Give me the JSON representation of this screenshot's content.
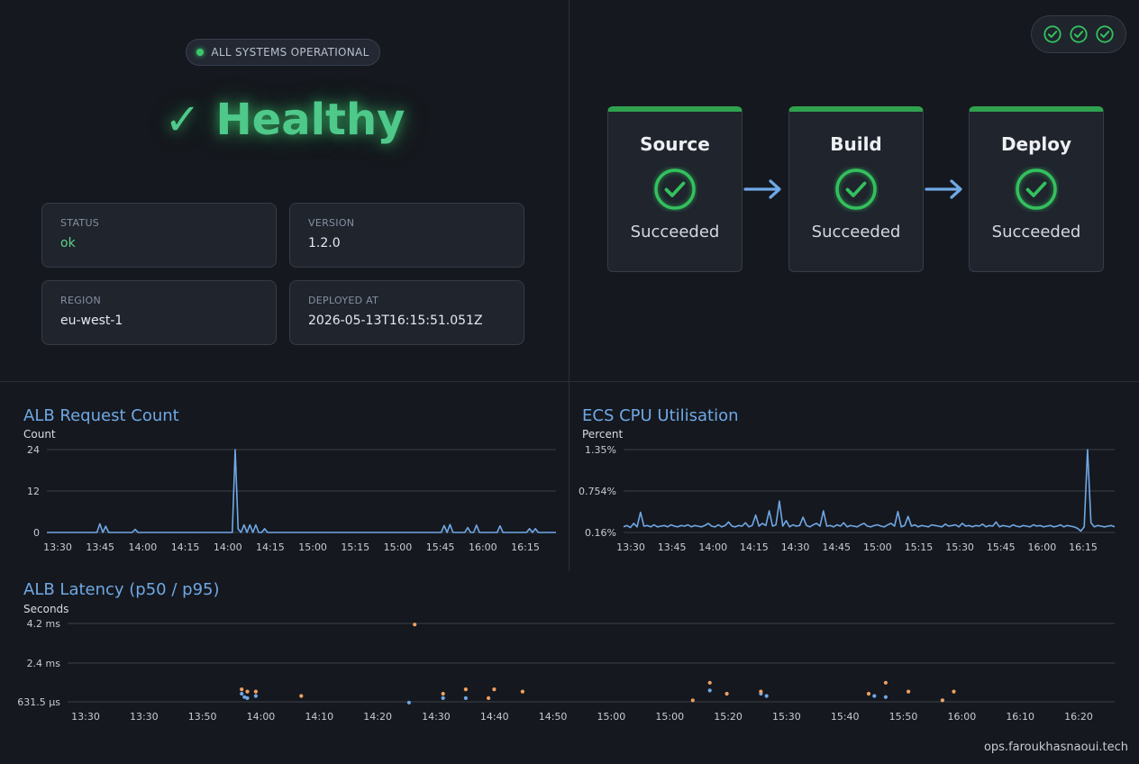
{
  "status": {
    "banner": "ALL SYSTEMS OPERATIONAL",
    "headline": "✓ Healthy",
    "cards": [
      {
        "label": "STATUS",
        "value": "ok"
      },
      {
        "label": "VERSION",
        "value": "1.2.0"
      },
      {
        "label": "REGION",
        "value": "eu-west-1"
      },
      {
        "label": "DEPLOYED AT",
        "value": "2026-05-13T16:15:51.051Z"
      }
    ]
  },
  "pipeline": {
    "stages": [
      {
        "name": "Source",
        "status": "Succeeded"
      },
      {
        "name": "Build",
        "status": "Succeeded"
      },
      {
        "name": "Deploy",
        "status": "Succeeded"
      }
    ],
    "icons": [
      "check-circle-icon",
      "arrow-right-icon"
    ],
    "colors": {
      "success": "#2fa24e",
      "arrow": "#6fa8e6"
    }
  },
  "footer": {
    "domain": "ops.faroukhasnaoui.tech"
  },
  "chart_data": [
    {
      "type": "line",
      "title": "ALB Request Count",
      "ylabel": "Count",
      "ylim": [
        0,
        24
      ],
      "yticks": [
        "24",
        "12",
        "0"
      ],
      "xticks": [
        "13:30",
        "13:45",
        "14:00",
        "14:15",
        "14:00",
        "14:15",
        "15:00",
        "15:15",
        "15:00",
        "15:45",
        "16:00",
        "16:15"
      ],
      "grid": true,
      "color": "#6fa8e6",
      "series": [
        {
          "values": [
            0,
            0,
            0,
            0,
            0,
            0,
            0,
            0,
            0,
            0,
            0,
            0,
            0,
            0,
            0,
            0,
            0,
            0,
            2.5,
            0,
            1.8,
            0,
            0,
            0,
            0,
            0,
            0,
            0,
            0,
            0,
            0.9,
            0,
            0,
            0,
            0,
            0,
            0,
            0,
            0,
            0,
            0,
            0,
            0,
            0,
            0,
            0,
            0,
            0,
            0,
            0,
            0,
            0,
            0,
            0,
            0,
            0,
            0,
            0,
            0,
            0,
            0,
            0,
            0,
            0,
            24,
            1,
            0,
            2.2,
            0,
            2.2,
            0,
            2.2,
            0,
            0,
            1.1,
            0,
            0,
            0,
            0,
            0,
            0,
            0,
            0,
            0,
            0,
            0,
            0,
            0,
            0,
            0,
            0,
            0,
            0,
            0,
            0,
            0,
            0,
            0,
            0,
            0,
            0,
            0,
            0,
            0,
            0,
            0,
            0,
            0,
            0,
            0,
            0,
            0,
            0,
            0,
            0,
            0,
            0,
            0,
            0,
            0,
            0,
            0,
            0,
            0,
            0,
            0,
            0,
            0,
            0,
            0,
            0,
            0,
            0,
            0,
            0,
            2,
            0,
            2.3,
            0,
            0,
            0,
            0,
            0,
            1.4,
            0,
            0,
            2.1,
            0,
            0,
            0,
            0,
            0,
            0,
            0,
            1.9,
            0,
            0,
            0,
            0,
            0,
            0,
            0,
            0,
            0,
            1.1,
            0,
            1.1,
            0,
            0,
            0,
            0,
            0,
            0,
            0
          ]
        }
      ]
    },
    {
      "type": "line",
      "title": "ECS CPU Utilisation",
      "ylabel": "Percent",
      "ylim": [
        0.16,
        1.35
      ],
      "yticks": [
        "1.35%",
        "0.754%",
        "0.16%"
      ],
      "xticks": [
        "13:30",
        "13:45",
        "14:00",
        "14:15",
        "14:30",
        "14:45",
        "15:00",
        "15:15",
        "15:30",
        "15:45",
        "16:00",
        "16:15"
      ],
      "grid": true,
      "color": "#6fa8e6",
      "series": [
        {
          "values": [
            0.24,
            0.26,
            0.23,
            0.29,
            0.24,
            0.45,
            0.25,
            0.26,
            0.24,
            0.27,
            0.24,
            0.25,
            0.26,
            0.24,
            0.27,
            0.25,
            0.24,
            0.26,
            0.25,
            0.27,
            0.24,
            0.26,
            0.25,
            0.24,
            0.26,
            0.29,
            0.25,
            0.24,
            0.27,
            0.24,
            0.26,
            0.31,
            0.25,
            0.24,
            0.26,
            0.25,
            0.3,
            0.24,
            0.26,
            0.41,
            0.25,
            0.29,
            0.26,
            0.47,
            0.25,
            0.27,
            0.61,
            0.25,
            0.33,
            0.24,
            0.27,
            0.25,
            0.26,
            0.38,
            0.26,
            0.24,
            0.27,
            0.29,
            0.25,
            0.47,
            0.25,
            0.26,
            0.24,
            0.27,
            0.25,
            0.3,
            0.24,
            0.26,
            0.25,
            0.24,
            0.27,
            0.29,
            0.25,
            0.24,
            0.26,
            0.27,
            0.25,
            0.24,
            0.27,
            0.29,
            0.25,
            0.46,
            0.24,
            0.26,
            0.39,
            0.25,
            0.27,
            0.24,
            0.26,
            0.25,
            0.24,
            0.27,
            0.26,
            0.25,
            0.24,
            0.28,
            0.25,
            0.26,
            0.27,
            0.24,
            0.29,
            0.25,
            0.26,
            0.24,
            0.26,
            0.25,
            0.28,
            0.24,
            0.26,
            0.25,
            0.31,
            0.24,
            0.26,
            0.25,
            0.24,
            0.27,
            0.25,
            0.24,
            0.26,
            0.25,
            0.24,
            0.27,
            0.25,
            0.26,
            0.24,
            0.25,
            0.26,
            0.24,
            0.25,
            0.27,
            0.24,
            0.26,
            0.25,
            0.24,
            0.22,
            0.18,
            0.24,
            1.35,
            0.3,
            0.24,
            0.26,
            0.25,
            0.24,
            0.25,
            0.26,
            0.24
          ]
        }
      ]
    },
    {
      "type": "scatter",
      "title": "ALB Latency (p50 / p95)",
      "ylabel": "Seconds",
      "ylim": [
        0.6315,
        4.2
      ],
      "yticks": [
        "4.2 ms",
        "2.4 ms",
        "631.5 µs"
      ],
      "xticks": [
        "13:30",
        "13:30",
        "13:50",
        "14:00",
        "14:10",
        "14:20",
        "14:30",
        "14:40",
        "14:50",
        "15:00",
        "15:00",
        "15:20",
        "15:30",
        "15:40",
        "15:50",
        "16:00",
        "16:10",
        "16:20"
      ],
      "x_range_minutes": [
        0,
        175
      ],
      "grid": true,
      "series": [
        {
          "name": "p50",
          "color": "#6fa8e6",
          "points": [
            [
              27.5,
              1.0
            ],
            [
              28,
              0.85
            ],
            [
              28.5,
              0.8
            ],
            [
              30,
              0.9
            ],
            [
              57,
              0.6
            ],
            [
              63,
              0.8
            ],
            [
              67,
              0.8
            ],
            [
              110,
              1.15
            ],
            [
              119,
              1.0
            ],
            [
              120,
              0.9
            ],
            [
              139,
              0.9
            ],
            [
              141,
              0.85
            ],
            [
              151,
              0.7
            ]
          ]
        },
        {
          "name": "p95",
          "color": "#f0a060",
          "points": [
            [
              27.5,
              1.2
            ],
            [
              28.5,
              1.1
            ],
            [
              30,
              1.1
            ],
            [
              38,
              0.9
            ],
            [
              58,
              4.15
            ],
            [
              63,
              1.0
            ],
            [
              67,
              1.2
            ],
            [
              71,
              0.8
            ],
            [
              72,
              1.2
            ],
            [
              77,
              1.1
            ],
            [
              107,
              0.7
            ],
            [
              110,
              1.5
            ],
            [
              113,
              1.0
            ],
            [
              119,
              1.1
            ],
            [
              138,
              1.0
            ],
            [
              141,
              1.5
            ],
            [
              145,
              1.1
            ],
            [
              151,
              0.7
            ],
            [
              153,
              1.1
            ]
          ]
        }
      ]
    }
  ]
}
